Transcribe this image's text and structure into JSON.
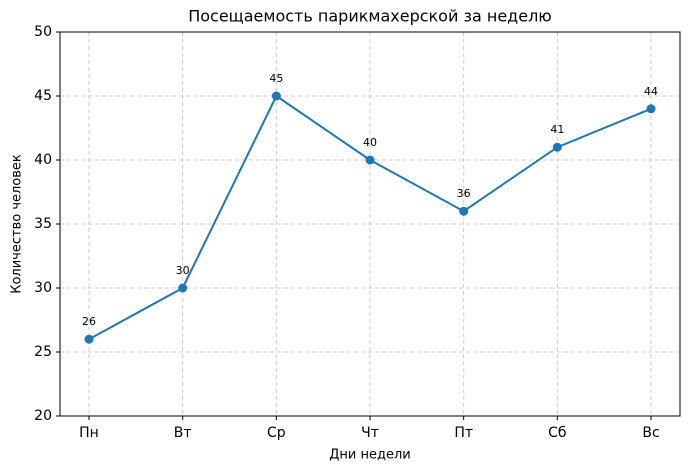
{
  "chart_data": {
    "type": "line",
    "title": "Посещаемость парикмахерской за неделю",
    "x_label": "Дни недели",
    "y_label": "Количество человек",
    "categories": [
      "Пн",
      "Вт",
      "Ср",
      "Чт",
      "Пт",
      "Сб",
      "Вс"
    ],
    "values": [
      26,
      30,
      45,
      40,
      36,
      41,
      44
    ],
    "color": "#1f77b4",
    "ylim": [
      20,
      50
    ],
    "yticks": [
      20,
      25,
      30,
      35,
      40,
      45,
      50
    ],
    "grid": true
  }
}
